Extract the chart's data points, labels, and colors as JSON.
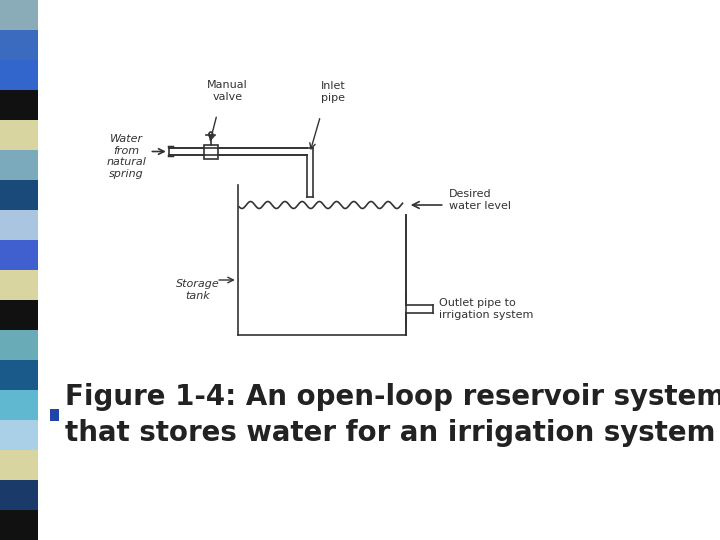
{
  "bg_color": "#ffffff",
  "sidebar_colors": [
    "#8aabb8",
    "#3a6bbf",
    "#3366cc",
    "#111111",
    "#d9d5a0",
    "#7aaabb",
    "#1a4a7a",
    "#aac5e0",
    "#4060d0",
    "#d9d5a0",
    "#111111",
    "#6aabb8",
    "#1a5a8a",
    "#60b8d0",
    "#aad0e8",
    "#d9d5a0",
    "#1a3a6a",
    "#111111"
  ],
  "title_line1": "Figure 1-4: An open-loop reservoir system",
  "title_line2": "that stores water for an irrigation system",
  "title_fontsize": 24,
  "title_color": "#222222",
  "bullet_color": "#2244aa",
  "labels": {
    "manual_valve": "Manual\nvalve",
    "inlet_pipe": "Inlet\npipe",
    "water_from": "Water\nfrom\nnatural\nspring",
    "storage_tank": "Storage\ntank",
    "desired_water": "Desired\nwater level",
    "outlet_pipe": "Outlet pipe to\nirrigation system"
  }
}
